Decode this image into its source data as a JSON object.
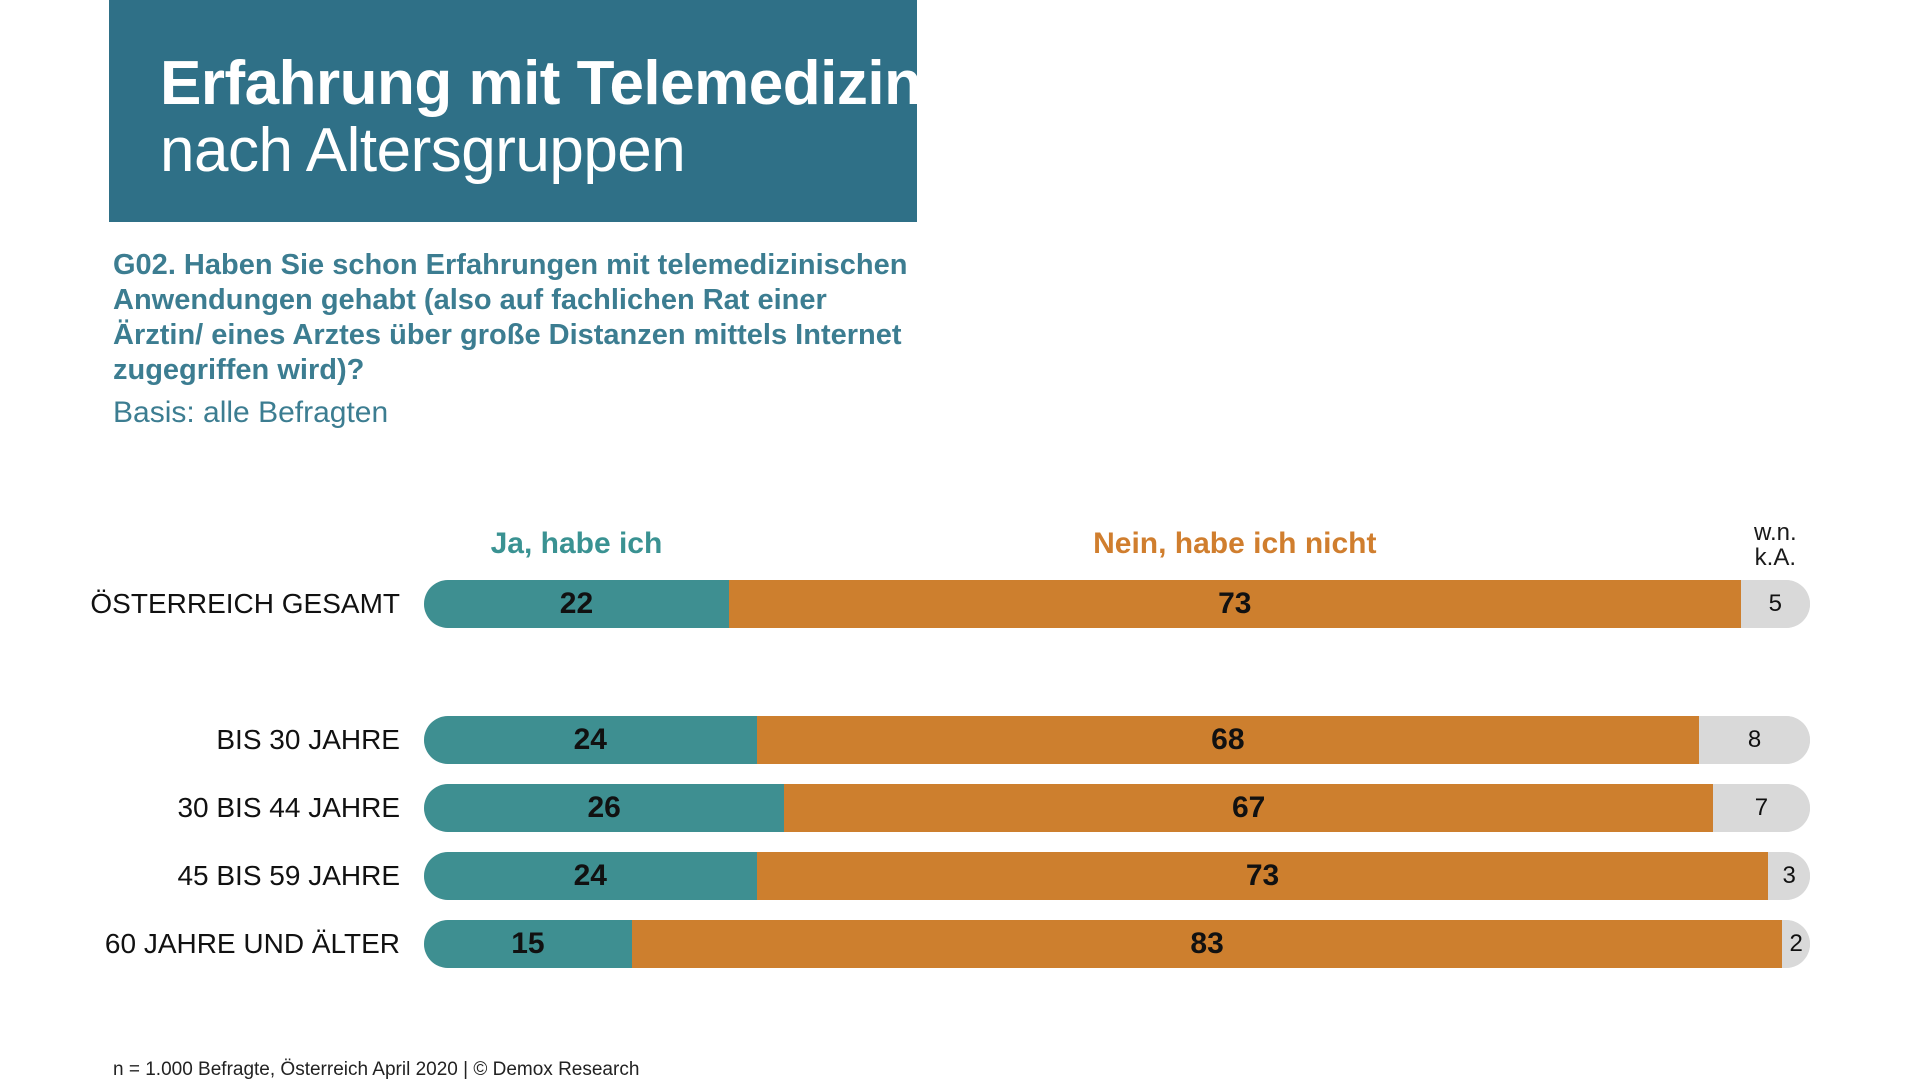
{
  "header": {
    "title_bold": "Erfahrung mit Telemedizin",
    "title_regular": "nach Altersgruppen"
  },
  "question": "G02. Haben Sie schon Erfahrungen mit telemedizinischen Anwendungen gehabt (also auf fachlichen Rat einer Ärztin/ eines Arztes über große Distanzen mittels Internet zugegriffen wird)?",
  "basis": "Basis: alle Befragten",
  "footer": "n = 1.000 Befragte, Österreich April 2020 | © Demox Research",
  "colors": {
    "header_bg": "#2f7087",
    "ja": "#3e8f91",
    "nein": "#cd7f2e",
    "wn": "#d9d9d9"
  },
  "chart_data": {
    "type": "bar",
    "orientation": "horizontal",
    "stacked": true,
    "unit": "%",
    "xlim": [
      0,
      100
    ],
    "legend": {
      "ja": "Ja, habe ich",
      "nein": "Nein, habe ich nicht",
      "wn_line1": "w.n.",
      "wn_line2": "k.A."
    },
    "categories": [
      "ÖSTERREICH GESAMT",
      "BIS 30 JAHRE",
      "30 BIS 44 JAHRE",
      "45 BIS 59 JAHRE",
      "60 JAHRE UND ÄLTER"
    ],
    "series": [
      {
        "name": "Ja, habe ich",
        "values": [
          22,
          24,
          26,
          24,
          15
        ]
      },
      {
        "name": "Nein, habe ich nicht",
        "values": [
          73,
          68,
          67,
          73,
          83
        ]
      },
      {
        "name": "w.n. k.A.",
        "values": [
          5,
          8,
          7,
          3,
          2
        ]
      }
    ]
  }
}
